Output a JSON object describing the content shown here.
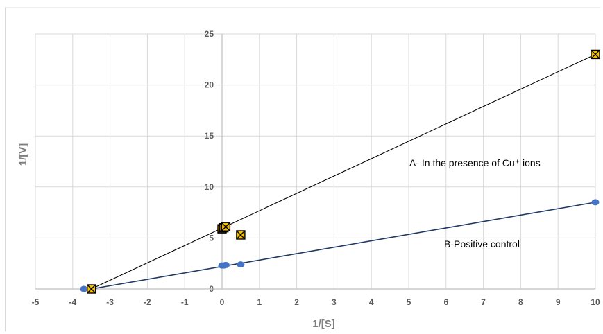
{
  "chart_data": {
    "type": "scatter",
    "xlabel": "1/[S]",
    "ylabel": "1/[V]",
    "xlim": [
      -5,
      10
    ],
    "ylim": [
      0,
      25
    ],
    "x_ticks": [
      "-5",
      "-4",
      "-3",
      "-2",
      "-1",
      "0",
      "1",
      "2",
      "3",
      "4",
      "5",
      "6",
      "7",
      "8",
      "9",
      "10"
    ],
    "y_ticks": [
      "0",
      "5",
      "10",
      "15",
      "20",
      "25"
    ],
    "grid": true,
    "series": [
      {
        "label": "A- In the presence of Cu⁺ ions",
        "marker": "square-x",
        "color": "#000000",
        "fill": "#f5c000",
        "points": [
          {
            "x": -3.5,
            "y": 0
          },
          {
            "x": 0.0,
            "y": 5.9
          },
          {
            "x": 0.05,
            "y": 6.0
          },
          {
            "x": 0.1,
            "y": 6.1
          },
          {
            "x": 0.5,
            "y": 5.3
          },
          {
            "x": 10,
            "y": 23
          }
        ],
        "trendline": {
          "from": [
            -3.5,
            0
          ],
          "to": [
            10,
            23
          ]
        }
      },
      {
        "label": "B-Positive control",
        "marker": "circle",
        "color": "#4472c4",
        "points": [
          {
            "x": -3.7,
            "y": 0
          },
          {
            "x": -3.5,
            "y": 0
          },
          {
            "x": 0.0,
            "y": 2.3
          },
          {
            "x": 0.05,
            "y": 2.3
          },
          {
            "x": 0.1,
            "y": 2.35
          },
          {
            "x": 0.5,
            "y": 2.4
          },
          {
            "x": 10,
            "y": 8.5
          }
        ],
        "trendline": {
          "from": [
            -3.5,
            0
          ],
          "to": [
            10,
            8.5
          ]
        }
      }
    ],
    "colors": {
      "grid": "#d9d9d9",
      "axis": "#bfbfbf",
      "line": "#000000",
      "lineB": "#1f3864"
    }
  }
}
